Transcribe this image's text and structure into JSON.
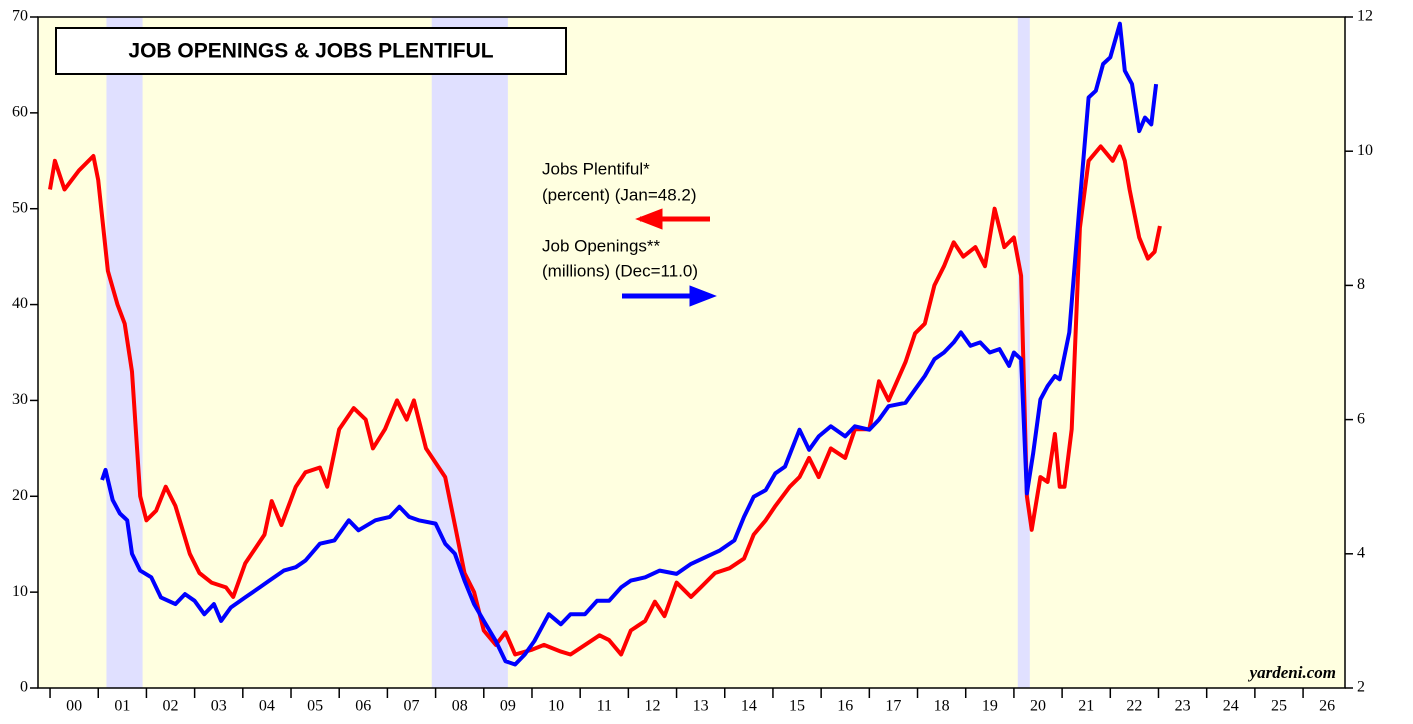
{
  "chart_data": {
    "type": "line",
    "title": "JOB OPENINGS & JOBS PLENTIFUL",
    "annotations": [
      "Jobs Plentiful*",
      "(percent) (Jan=48.2)",
      "Job Openings**",
      "(millions) (Dec=11.0)"
    ],
    "source": "yardeni.com",
    "xlim": [
      1999.75,
      2026.87
    ],
    "xticks": [
      {
        "value": 2000,
        "label": "00"
      },
      {
        "value": 2001,
        "label": "01"
      },
      {
        "value": 2002,
        "label": "02"
      },
      {
        "value": 2003,
        "label": "03"
      },
      {
        "value": 2004,
        "label": "04"
      },
      {
        "value": 2005,
        "label": "05"
      },
      {
        "value": 2006,
        "label": "06"
      },
      {
        "value": 2007,
        "label": "07"
      },
      {
        "value": 2008,
        "label": "08"
      },
      {
        "value": 2009,
        "label": "09"
      },
      {
        "value": 2010,
        "label": "10"
      },
      {
        "value": 2011,
        "label": "11"
      },
      {
        "value": 2012,
        "label": "12"
      },
      {
        "value": 2013,
        "label": "13"
      },
      {
        "value": 2014,
        "label": "14"
      },
      {
        "value": 2015,
        "label": "15"
      },
      {
        "value": 2016,
        "label": "16"
      },
      {
        "value": 2017,
        "label": "17"
      },
      {
        "value": 2018,
        "label": "18"
      },
      {
        "value": 2019,
        "label": "19"
      },
      {
        "value": 2020,
        "label": "20"
      },
      {
        "value": 2021,
        "label": "21"
      },
      {
        "value": 2022,
        "label": "22"
      },
      {
        "value": 2023,
        "label": "23"
      },
      {
        "value": 2024,
        "label": "24"
      },
      {
        "value": 2025,
        "label": "25"
      },
      {
        "value": 2026,
        "label": "26"
      }
    ],
    "ylim": [
      0,
      70
    ],
    "yticks": [
      0,
      10,
      20,
      30,
      40,
      50,
      60,
      70
    ],
    "y2lim": [
      2,
      12
    ],
    "y2ticks": [
      2,
      4,
      6,
      8,
      10,
      12
    ],
    "background": "#ffffe0",
    "shade_color": "#e0e0ff",
    "recessions": [
      [
        2001.17,
        2001.92
      ],
      [
        2007.92,
        2009.5
      ],
      [
        2020.08,
        2020.33
      ]
    ],
    "series": [
      {
        "name": "Jobs Plentiful",
        "color": "#ff0000",
        "axis": "y",
        "x": [
          2000.0,
          2000.1,
          2000.3,
          2000.6,
          2000.9,
          2001.0,
          2001.2,
          2001.4,
          2001.55,
          2001.7,
          2001.87,
          2002.0,
          2002.2,
          2002.4,
          2002.6,
          2002.9,
          2003.1,
          2003.35,
          2003.65,
          2003.8,
          2004.05,
          2004.25,
          2004.45,
          2004.6,
          2004.8,
          2005.1,
          2005.3,
          2005.6,
          2005.75,
          2006.0,
          2006.3,
          2006.55,
          2006.7,
          2006.95,
          2007.2,
          2007.4,
          2007.55,
          2007.8,
          2008.0,
          2008.2,
          2008.4,
          2008.6,
          2008.8,
          2009.0,
          2009.25,
          2009.45,
          2009.65,
          2010.0,
          2010.25,
          2010.6,
          2010.8,
          2011.1,
          2011.4,
          2011.6,
          2011.85,
          2012.05,
          2012.35,
          2012.55,
          2012.75,
          2013.0,
          2013.3,
          2013.5,
          2013.8,
          2014.1,
          2014.4,
          2014.6,
          2014.85,
          2015.05,
          2015.35,
          2015.55,
          2015.75,
          2015.95,
          2016.2,
          2016.5,
          2016.7,
          2017.0,
          2017.2,
          2017.4,
          2017.75,
          2017.95,
          2018.15,
          2018.35,
          2018.55,
          2018.75,
          2018.95,
          2019.2,
          2019.4,
          2019.6,
          2019.8,
          2020.0,
          2020.15,
          2020.27,
          2020.37,
          2020.55,
          2020.7,
          2020.85,
          2020.95,
          2021.05,
          2021.2,
          2021.37,
          2021.55,
          2021.8,
          2022.05,
          2022.2,
          2022.3,
          2022.4,
          2022.6,
          2022.78,
          2022.92,
          2023.03
        ],
        "values": [
          52,
          55,
          52,
          54,
          55.5,
          53,
          43.5,
          40,
          38,
          33,
          20,
          17.5,
          18.5,
          21,
          19,
          14,
          12,
          11,
          10.5,
          9.5,
          13,
          14.5,
          16,
          19.5,
          17,
          21,
          22.5,
          23,
          21,
          27,
          29.2,
          28,
          25,
          27,
          30,
          28,
          30,
          25,
          23.5,
          22,
          17,
          12,
          10,
          6,
          4.5,
          5.8,
          3.5,
          4,
          4.5,
          3.8,
          3.5,
          4.5,
          5.5,
          5,
          3.5,
          6,
          7,
          9,
          7.5,
          11,
          9.5,
          10.5,
          12,
          12.5,
          13.5,
          16,
          17.5,
          19,
          21,
          22,
          24,
          22,
          25,
          24,
          27,
          27,
          32,
          30,
          34,
          37,
          38,
          42,
          44,
          46.5,
          45,
          46,
          44,
          50,
          46,
          47,
          43,
          20,
          16.5,
          22,
          21.5,
          26.5,
          21,
          21,
          27,
          48,
          55,
          56.5,
          55,
          56.5,
          55,
          52,
          47,
          44.8,
          45.5,
          48.2
        ]
      },
      {
        "name": "Job Openings",
        "color": "#0000ff",
        "axis": "y2",
        "x": [
          2001.08,
          2001.15,
          2001.3,
          2001.45,
          2001.6,
          2001.7,
          2001.87,
          2002.1,
          2002.3,
          2002.6,
          2002.8,
          2003.0,
          2003.2,
          2003.4,
          2003.55,
          2003.75,
          2004.05,
          2004.35,
          2004.55,
          2004.85,
          2005.1,
          2005.3,
          2005.6,
          2005.9,
          2006.2,
          2006.4,
          2006.75,
          2007.05,
          2007.25,
          2007.45,
          2007.65,
          2008.0,
          2008.2,
          2008.4,
          2008.6,
          2008.8,
          2009.0,
          2009.25,
          2009.45,
          2009.65,
          2009.85,
          2010.05,
          2010.35,
          2010.6,
          2010.8,
          2011.1,
          2011.35,
          2011.6,
          2011.85,
          2012.05,
          2012.35,
          2012.65,
          2013.0,
          2013.3,
          2013.6,
          2013.9,
          2014.2,
          2014.4,
          2014.6,
          2014.85,
          2015.05,
          2015.25,
          2015.55,
          2015.75,
          2015.95,
          2016.2,
          2016.5,
          2016.7,
          2017.0,
          2017.2,
          2017.4,
          2017.75,
          2017.95,
          2018.15,
          2018.35,
          2018.55,
          2018.75,
          2018.9,
          2019.1,
          2019.3,
          2019.5,
          2019.7,
          2019.9,
          2020.0,
          2020.15,
          2020.27,
          2020.4,
          2020.55,
          2020.7,
          2020.85,
          2020.95,
          2021.15,
          2021.35,
          2021.55,
          2021.7,
          2021.85,
          2022.0,
          2022.2,
          2022.3,
          2022.45,
          2022.6,
          2022.72,
          2022.85,
          2022.95
        ],
        "values": [
          5.1,
          5.25,
          4.8,
          4.6,
          4.5,
          4.0,
          3.75,
          3.65,
          3.35,
          3.25,
          3.4,
          3.3,
          3.1,
          3.25,
          3.0,
          3.2,
          3.35,
          3.5,
          3.6,
          3.75,
          3.8,
          3.9,
          4.15,
          4.2,
          4.5,
          4.35,
          4.5,
          4.55,
          4.7,
          4.55,
          4.5,
          4.45,
          4.15,
          4.0,
          3.6,
          3.25,
          3.0,
          2.7,
          2.4,
          2.35,
          2.5,
          2.7,
          3.1,
          2.95,
          3.1,
          3.1,
          3.3,
          3.3,
          3.5,
          3.6,
          3.65,
          3.75,
          3.7,
          3.85,
          3.95,
          4.05,
          4.2,
          4.55,
          4.85,
          4.95,
          5.2,
          5.3,
          5.85,
          5.55,
          5.75,
          5.9,
          5.75,
          5.9,
          5.85,
          6.0,
          6.2,
          6.25,
          6.45,
          6.65,
          6.9,
          7.0,
          7.15,
          7.3,
          7.1,
          7.15,
          7.0,
          7.05,
          6.8,
          7.0,
          6.9,
          4.9,
          5.5,
          6.3,
          6.5,
          6.65,
          6.6,
          7.3,
          9.1,
          10.8,
          10.9,
          11.3,
          11.4,
          11.9,
          11.2,
          11.0,
          10.3,
          10.5,
          10.4,
          11.0
        ]
      }
    ]
  }
}
